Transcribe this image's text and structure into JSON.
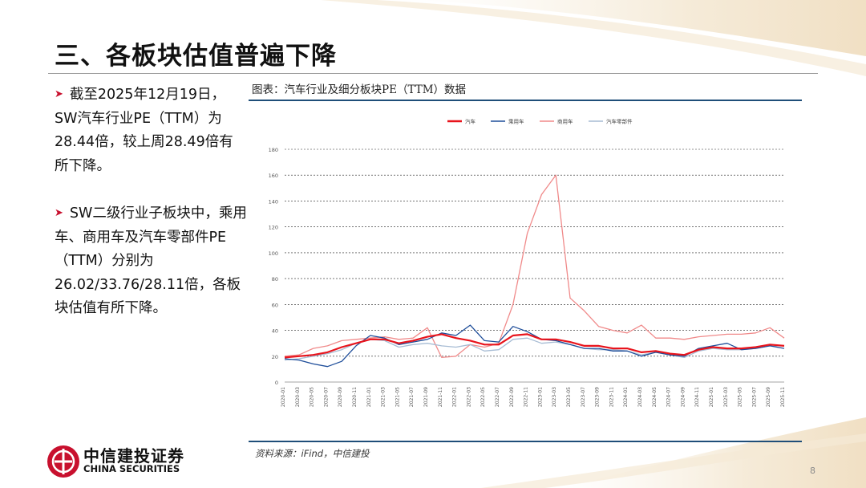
{
  "slide": {
    "title": "三、各板块估值普遍下降",
    "bullets": [
      "截至2025年12月19日，SW汽车行业PE（TTM）为28.44倍，较上周28.49倍有所下降。",
      "SW二级行业子板块中，乘用车、商用车及汽车零部件PE（TTM）分别为26.02/33.76/28.11倍，各板块估值有所下降。"
    ],
    "chart_caption": "图表：汽车行业及细分板块PE（TTM）数据",
    "source": "资料来源：iFind，中信建投",
    "page_number": "8",
    "logo": {
      "cn": "中信建投证券",
      "en": "CHINA SECURITIES"
    },
    "colors": {
      "accent_red": "#c8102e",
      "rule_blue": "#1f4e79"
    }
  },
  "chart_data": {
    "type": "line",
    "title": "",
    "legend_position": "top-center",
    "grid": true,
    "ylim": [
      0,
      180
    ],
    "yticks": [
      "0",
      "20",
      "40",
      "60",
      "80",
      "100",
      "120",
      "140",
      "160",
      "180"
    ],
    "x": [
      "2020-01",
      "2020-03",
      "2020-05",
      "2020-07",
      "2020-09",
      "2020-11",
      "2021-01",
      "2021-03",
      "2021-05",
      "2021-07",
      "2021-09",
      "2021-11",
      "2022-01",
      "2022-03",
      "2022-05",
      "2022-07",
      "2022-09",
      "2022-11",
      "2023-01",
      "2023-03",
      "2023-05",
      "2023-07",
      "2023-09",
      "2023-11",
      "2024-01",
      "2024-03",
      "2024-05",
      "2024-07",
      "2024-09",
      "2024-11",
      "2025-01",
      "2025-03",
      "2025-05",
      "2025-07",
      "2025-09",
      "2025-11"
    ],
    "series": [
      {
        "name": "汽车",
        "color": "#e8141c",
        "values": [
          19,
          20,
          21,
          23,
          27,
          30,
          33,
          33,
          30,
          32,
          35,
          37,
          34,
          32,
          29,
          29,
          36,
          37,
          33,
          33,
          31,
          28,
          28,
          26,
          26,
          23,
          24,
          22,
          21,
          25,
          27,
          26,
          26,
          27,
          29,
          28
        ]
      },
      {
        "name": "乘用车",
        "color": "#1f4e9a",
        "values": [
          18,
          17,
          14,
          12,
          16,
          28,
          36,
          34,
          29,
          31,
          33,
          38,
          36,
          44,
          32,
          31,
          43,
          39,
          33,
          32,
          29,
          26,
          26,
          24,
          24,
          20,
          23,
          21,
          20,
          26,
          28,
          30,
          25,
          26,
          28,
          26
        ]
      },
      {
        "name": "商用车",
        "color": "#f08a8a",
        "values": [
          20,
          21,
          26,
          28,
          32,
          33,
          34,
          35,
          33,
          34,
          42,
          19,
          20,
          29,
          27,
          30,
          60,
          115,
          145,
          160,
          65,
          55,
          43,
          40,
          38,
          44,
          34,
          34,
          33,
          35,
          36,
          37,
          37,
          38,
          42,
          34
        ]
      },
      {
        "name": "汽车零部件",
        "color": "#a7bcd4",
        "values": [
          17,
          18,
          20,
          22,
          25,
          30,
          33,
          32,
          27,
          29,
          30,
          28,
          27,
          29,
          24,
          25,
          33,
          34,
          30,
          31,
          29,
          26,
          25,
          25,
          24,
          21,
          23,
          21,
          19,
          24,
          26,
          25,
          25,
          26,
          28,
          28
        ]
      }
    ]
  }
}
